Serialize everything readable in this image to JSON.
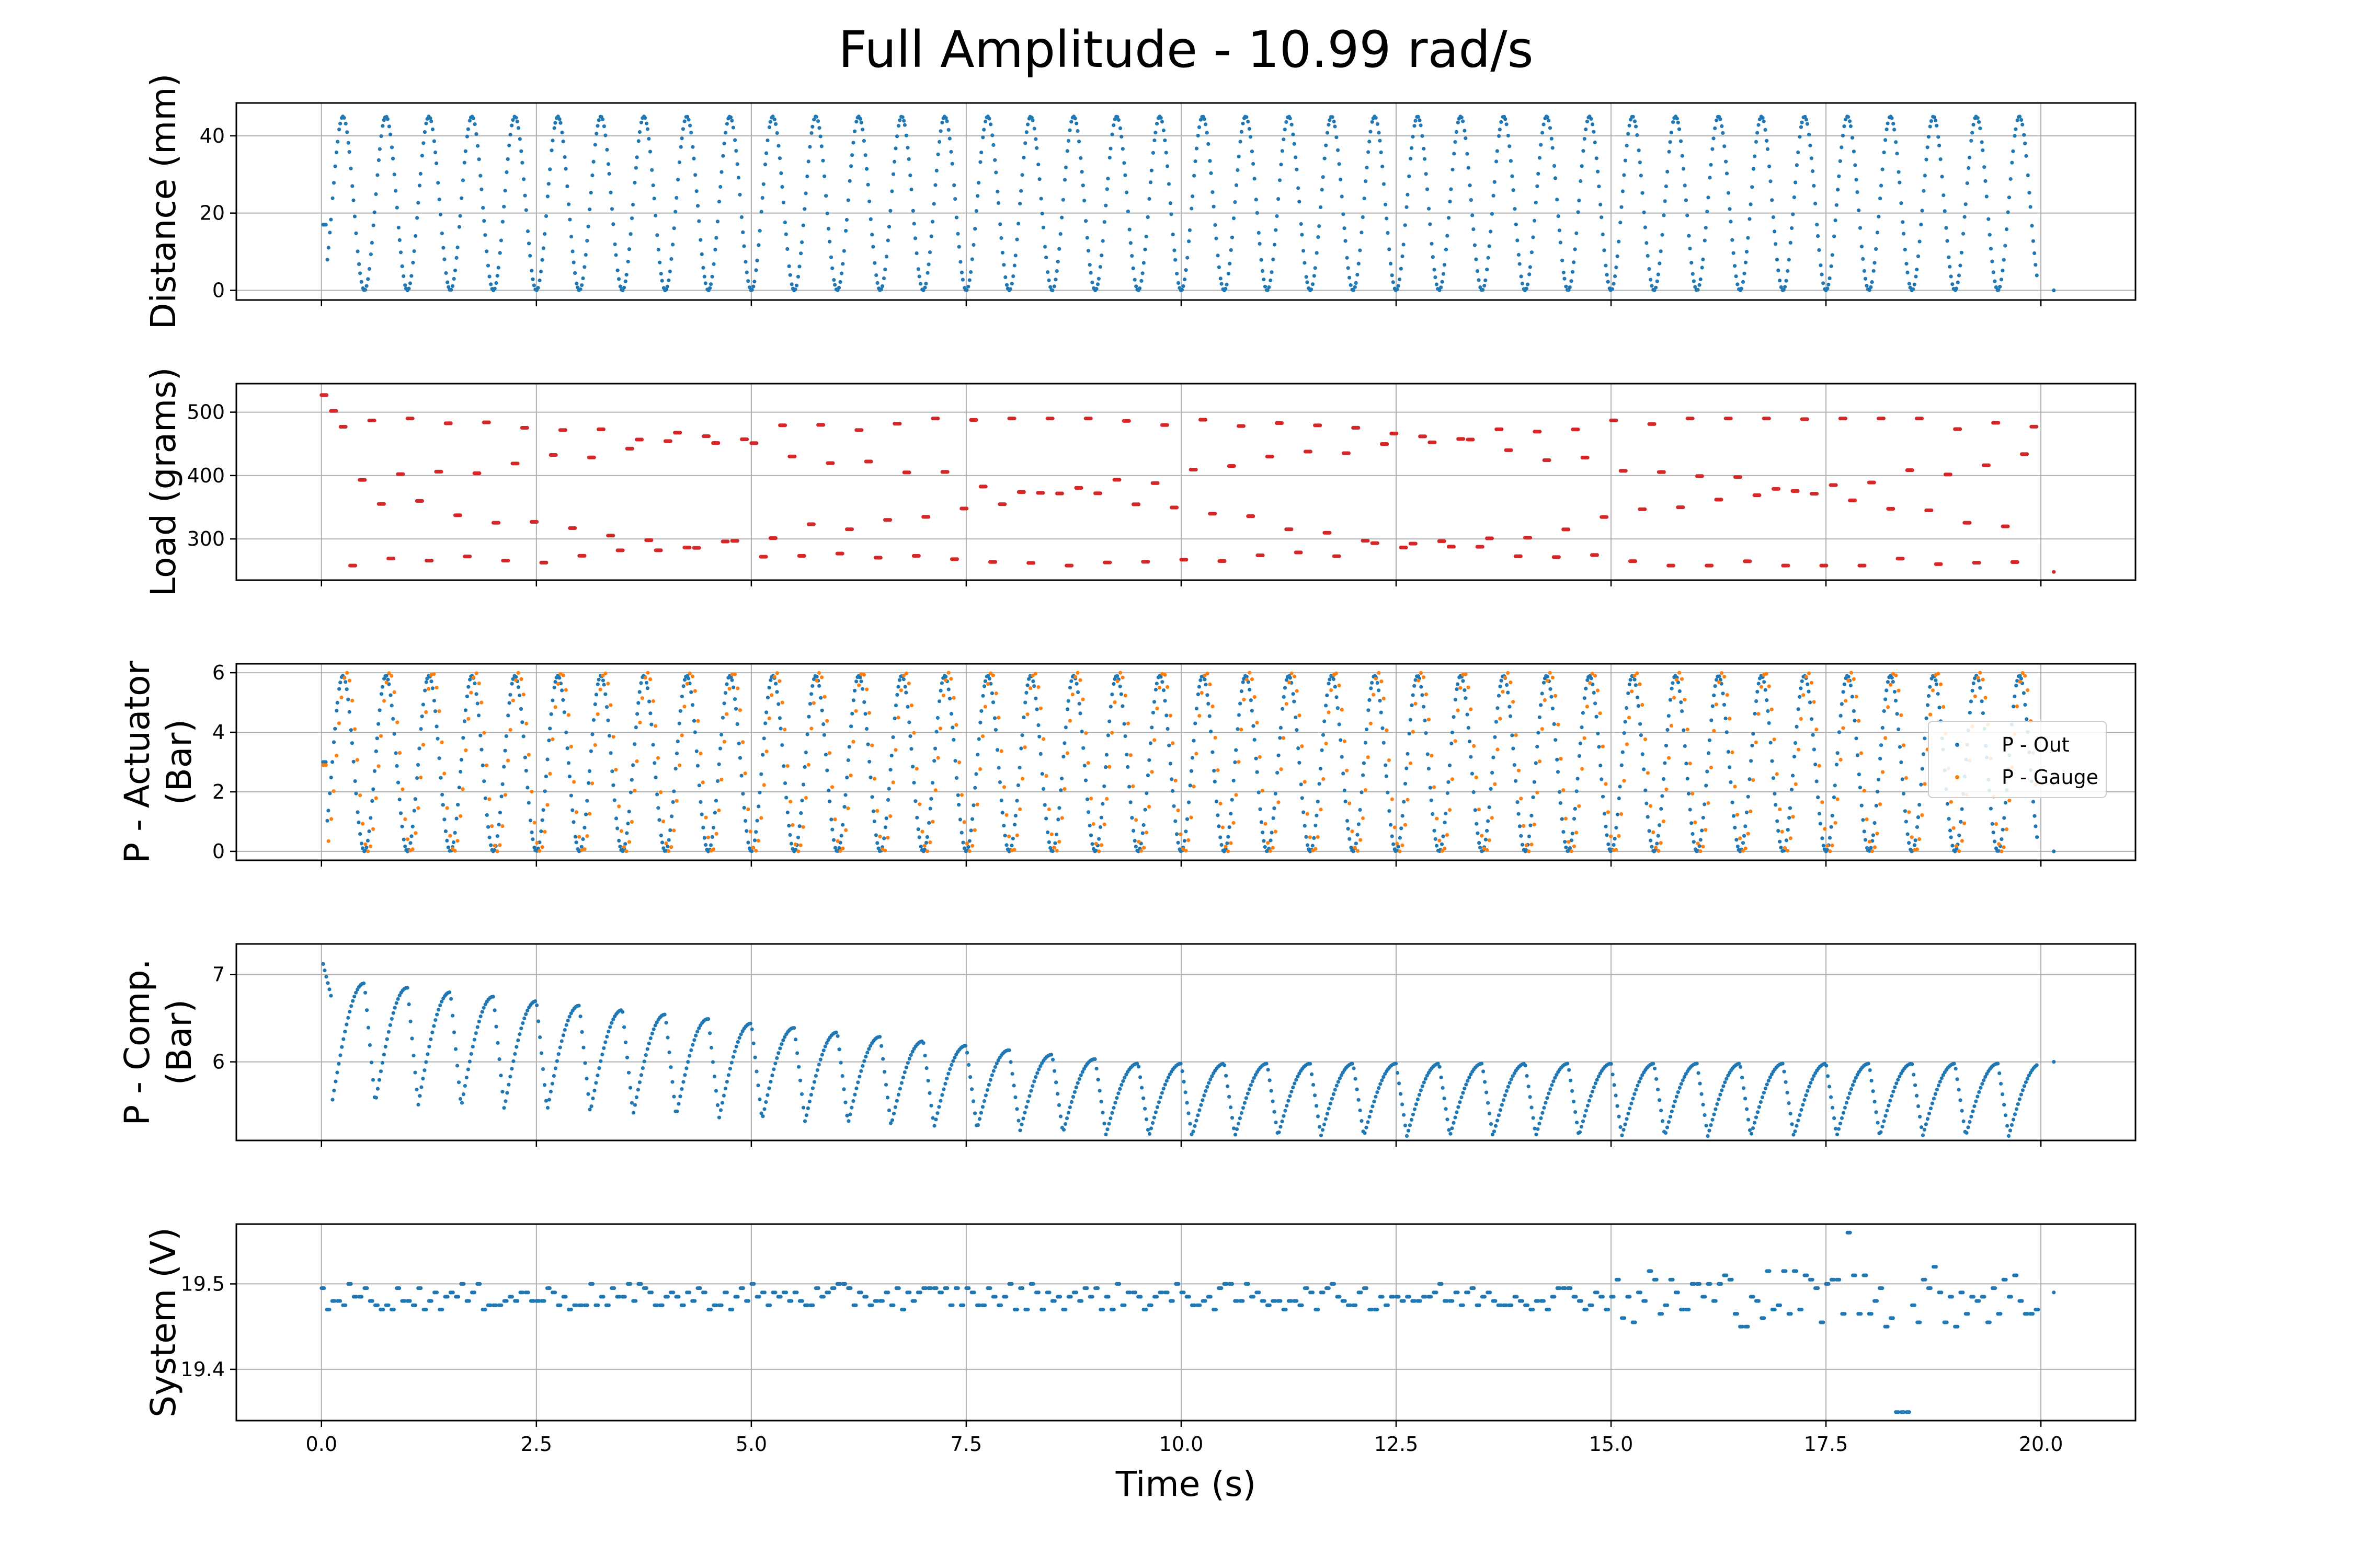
{
  "chart_data": {
    "type": "scatter",
    "title": "Full Amplitude - 10.99 rad/s",
    "xlabel": "Time (s)",
    "xlim": [
      -0.99,
      21.1
    ],
    "xticks": [
      0.0,
      2.5,
      5.0,
      7.5,
      10.0,
      12.5,
      15.0,
      17.5,
      20.0
    ],
    "xtick_labels": [
      "0.0",
      "2.5",
      "5.0",
      "7.5",
      "10.0",
      "12.5",
      "15.0",
      "17.5",
      "20.0"
    ],
    "grid": true,
    "cycles": 40,
    "duration_s": 20.0,
    "colors": {
      "blue": "#1f77b4",
      "orange": "#ff7f0e",
      "red": "#d62728"
    },
    "subplots": [
      {
        "ylabel": [
          "Distance (mm)"
        ],
        "ylim": [
          -2.5,
          48.5
        ],
        "yticks": [
          0,
          20,
          40
        ],
        "ytick_labels": [
          "0",
          "20",
          "40"
        ],
        "series": [
          {
            "color": "#1f77b4",
            "kind": "sine",
            "min": 0,
            "max": 45,
            "start": 17
          }
        ],
        "final_point": [
          20.15,
          0
        ]
      },
      {
        "ylabel": [
          "Load (grams)"
        ],
        "ylim": [
          235,
          545
        ],
        "yticks": [
          300,
          400,
          500
        ],
        "ytick_labels": [
          "300",
          "400",
          "500"
        ],
        "series": [
          {
            "color": "#d62728",
            "kind": "load",
            "min": 258,
            "max": 490,
            "peak_start": 527
          }
        ],
        "final_point": [
          20.15,
          248
        ]
      },
      {
        "ylabel": [
          "P - Actuator",
          "(Bar)"
        ],
        "ylim": [
          -0.3,
          6.3
        ],
        "yticks": [
          0,
          2,
          4,
          6
        ],
        "ytick_labels": [
          "0",
          "2",
          "4",
          "6"
        ],
        "series": [
          {
            "name": "P - Out",
            "color": "#1f77b4",
            "kind": "sine",
            "min": 0,
            "max": 5.9,
            "start": 3.0
          },
          {
            "name": "P - Gauge",
            "color": "#ff7f0e",
            "kind": "sine-lag",
            "min": 0,
            "max": 6.0,
            "start": 2.9
          }
        ],
        "legend": {
          "location": "right",
          "entries": [
            "P - Out",
            "P - Gauge"
          ]
        },
        "final_point": [
          20.15,
          0
        ]
      },
      {
        "ylabel": [
          "P - Comp.",
          "(Bar)"
        ],
        "ylim": [
          5.1,
          7.35
        ],
        "yticks": [
          6,
          7
        ],
        "ytick_labels": [
          "6",
          "7"
        ],
        "series": [
          {
            "color": "#1f77b4",
            "kind": "comp",
            "start": 7.2,
            "early_peak": 6.95,
            "late_peak": 5.98,
            "early_trough": 5.55,
            "late_trough": 5.15
          }
        ],
        "final_point": [
          20.15,
          6.0
        ]
      },
      {
        "ylabel": [
          "System (V)"
        ],
        "ylim": [
          19.34,
          19.57
        ],
        "yticks": [
          19.4,
          19.5
        ],
        "ytick_labels": [
          "19.4",
          "19.5"
        ],
        "series": [
          {
            "color": "#1f77b4",
            "kind": "noise",
            "mean": 19.485,
            "min": 19.35,
            "max": 19.56
          }
        ],
        "final_point": [
          20.15,
          19.49
        ]
      }
    ]
  }
}
